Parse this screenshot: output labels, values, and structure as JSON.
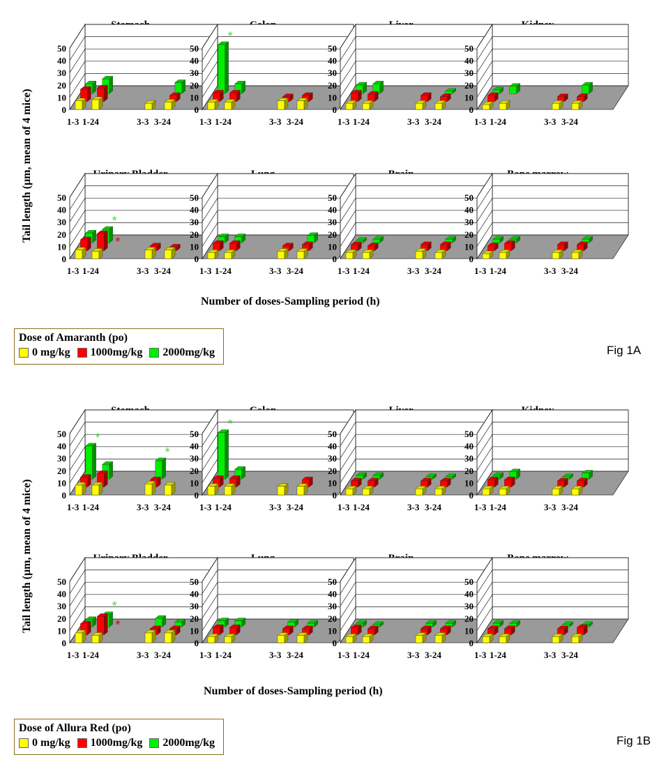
{
  "figures": [
    {
      "fig_label": "Fig 1A",
      "y_axis_label": "Tail length (µm, mean of 4 mice)",
      "x_axis_label": "Number of doses-Sampling period (h)",
      "legend": {
        "title": "Dose of Amaranth (po)",
        "items": [
          {
            "label": "0 mg/kg",
            "color": "#ffff00"
          },
          {
            "label": "1000mg/kg",
            "color": "#ff0000"
          },
          {
            "label": "2000mg/kg",
            "color": "#00ee00"
          }
        ]
      }
    },
    {
      "fig_label": "Fig 1B",
      "y_axis_label": "Tail length (µm, mean of 4 mice)",
      "x_axis_label": "Number of doses-Sampling period (h)",
      "legend": {
        "title": "Dose of Allura Red (po)",
        "items": [
          {
            "label": "0 mg/kg",
            "color": "#ffff00"
          },
          {
            "label": "1000mg/kg",
            "color": "#ff0000"
          },
          {
            "label": "2000mg/kg",
            "color": "#00ee00"
          }
        ]
      }
    }
  ],
  "chart_data": [
    {
      "figure": "Fig 1A",
      "type": "bar",
      "title": "Stomach",
      "categories": [
        "1-3",
        "1-24",
        "3-3",
        "3-24"
      ],
      "ylim": [
        0,
        50
      ],
      "yticks": [
        0,
        10,
        20,
        30,
        40,
        50
      ],
      "series": [
        {
          "name": "0 mg/kg",
          "values": [
            7,
            8,
            5,
            6
          ]
        },
        {
          "name": "1000mg/kg",
          "values": [
            10,
            11,
            0,
            5
          ]
        },
        {
          "name": "2000mg/kg",
          "values": [
            8,
            12,
            0,
            9
          ]
        }
      ],
      "annotations": []
    },
    {
      "figure": "Fig 1A",
      "type": "bar",
      "title": "Colon",
      "categories": [
        "1-3",
        "1-24",
        "3-3",
        "3-24"
      ],
      "ylim": [
        0,
        50
      ],
      "yticks": [
        0,
        10,
        20,
        30,
        40,
        50
      ],
      "series": [
        {
          "name": "0 mg/kg",
          "values": [
            6,
            6,
            7,
            7
          ]
        },
        {
          "name": "1000mg/kg",
          "values": [
            7,
            7,
            4,
            5
          ]
        },
        {
          "name": "2000mg/kg",
          "values": [
            40,
            8,
            0,
            0
          ]
        }
      ],
      "annotations": [
        {
          "text": "*",
          "series": 2,
          "category": 0,
          "color": "#44dd44"
        }
      ]
    },
    {
      "figure": "Fig 1A",
      "type": "bar",
      "title": "Liver",
      "categories": [
        "1-3",
        "1-24",
        "3-3",
        "3-24"
      ],
      "ylim": [
        0,
        50
      ],
      "yticks": [
        0,
        10,
        20,
        30,
        40,
        50
      ],
      "series": [
        {
          "name": "0 mg/kg",
          "values": [
            5,
            5,
            5,
            5
          ]
        },
        {
          "name": "1000mg/kg",
          "values": [
            7,
            6,
            5,
            4
          ]
        },
        {
          "name": "2000mg/kg",
          "values": [
            7,
            8,
            0,
            2
          ]
        }
      ],
      "annotations": []
    },
    {
      "figure": "Fig 1A",
      "type": "bar",
      "title": "Kidney",
      "categories": [
        "1-3",
        "1-24",
        "3-3",
        "3-24"
      ],
      "ylim": [
        0,
        50
      ],
      "yticks": [
        0,
        10,
        20,
        30,
        40,
        50
      ],
      "series": [
        {
          "name": "0 mg/kg",
          "values": [
            4,
            5,
            5,
            5
          ]
        },
        {
          "name": "1000mg/kg",
          "values": [
            5,
            0,
            4,
            4
          ]
        },
        {
          "name": "2000mg/kg",
          "values": [
            3,
            6,
            0,
            7
          ]
        }
      ],
      "annotations": []
    },
    {
      "figure": "Fig 1A",
      "type": "bar",
      "title": "Urinary Bladder",
      "categories": [
        "1-3",
        "1-24",
        "3-3",
        "3-24"
      ],
      "ylim": [
        0,
        50
      ],
      "yticks": [
        0,
        10,
        20,
        30,
        40,
        50
      ],
      "series": [
        {
          "name": "0 mg/kg",
          "values": [
            7,
            6,
            7,
            7
          ]
        },
        {
          "name": "1000mg/kg",
          "values": [
            9,
            14,
            4,
            3
          ]
        },
        {
          "name": "2000mg/kg",
          "values": [
            8,
            11,
            0,
            0
          ]
        }
      ],
      "annotations": [
        {
          "text": "*",
          "series": 2,
          "category": 1,
          "color": "#44dd44"
        },
        {
          "text": "*",
          "series": 1,
          "category": 1,
          "color": "#dd0000"
        }
      ]
    },
    {
      "figure": "Fig 1A",
      "type": "bar",
      "title": "Lung",
      "categories": [
        "1-3",
        "1-24",
        "3-3",
        "3-24"
      ],
      "ylim": [
        0,
        50
      ],
      "yticks": [
        0,
        10,
        20,
        30,
        40,
        50
      ],
      "series": [
        {
          "name": "0 mg/kg",
          "values": [
            5,
            5,
            6,
            6
          ]
        },
        {
          "name": "1000mg/kg",
          "values": [
            6,
            6,
            4,
            5
          ]
        },
        {
          "name": "2000mg/kg",
          "values": [
            5,
            5,
            0,
            6
          ]
        }
      ],
      "annotations": []
    },
    {
      "figure": "Fig 1A",
      "type": "bar",
      "title": "Brain",
      "categories": [
        "1-3",
        "1-24",
        "3-3",
        "3-24"
      ],
      "ylim": [
        0,
        50
      ],
      "yticks": [
        0,
        10,
        20,
        30,
        40,
        50
      ],
      "series": [
        {
          "name": "0 mg/kg",
          "values": [
            5,
            5,
            6,
            5
          ]
        },
        {
          "name": "1000mg/kg",
          "values": [
            5,
            4,
            5,
            5
          ]
        },
        {
          "name": "2000mg/kg",
          "values": [
            2,
            3,
            0,
            3
          ]
        }
      ],
      "annotations": []
    },
    {
      "figure": "Fig 1A",
      "type": "bar",
      "title": "Bone marrow",
      "categories": [
        "1-3",
        "1-24",
        "3-3",
        "3-24"
      ],
      "ylim": [
        0,
        50
      ],
      "yticks": [
        0,
        10,
        20,
        30,
        40,
        50
      ],
      "series": [
        {
          "name": "0 mg/kg",
          "values": [
            4,
            5,
            5,
            5
          ]
        },
        {
          "name": "1000mg/kg",
          "values": [
            4,
            6,
            5,
            5
          ]
        },
        {
          "name": "2000mg/kg",
          "values": [
            3,
            3,
            0,
            3
          ]
        }
      ],
      "annotations": []
    },
    {
      "figure": "Fig 1B",
      "type": "bar",
      "title": "Stomach",
      "categories": [
        "1-3",
        "1-24",
        "3-3",
        "3-24"
      ],
      "ylim": [
        0,
        50
      ],
      "yticks": [
        0,
        10,
        20,
        30,
        40,
        50
      ],
      "series": [
        {
          "name": "0 mg/kg",
          "values": [
            8,
            8,
            9,
            8
          ]
        },
        {
          "name": "1000mg/kg",
          "values": [
            8,
            11,
            6,
            0
          ]
        },
        {
          "name": "2000mg/kg",
          "values": [
            27,
            12,
            15,
            0
          ]
        }
      ],
      "annotations": [
        {
          "text": "*",
          "series": 2,
          "category": 0,
          "color": "#44dd44"
        },
        {
          "text": "*",
          "series": 2,
          "category": 2,
          "color": "#44dd44"
        }
      ]
    },
    {
      "figure": "Fig 1B",
      "type": "bar",
      "title": "Colon",
      "categories": [
        "1-3",
        "1-24",
        "3-3",
        "3-24"
      ],
      "ylim": [
        0,
        50
      ],
      "yticks": [
        0,
        10,
        20,
        30,
        40,
        50
      ],
      "series": [
        {
          "name": "0 mg/kg",
          "values": [
            7,
            7,
            7,
            7
          ]
        },
        {
          "name": "1000mg/kg",
          "values": [
            7,
            7,
            0,
            6
          ]
        },
        {
          "name": "2000mg/kg",
          "values": [
            38,
            8,
            0,
            0
          ]
        }
      ],
      "annotations": [
        {
          "text": "*",
          "series": 2,
          "category": 0,
          "color": "#44dd44"
        }
      ]
    },
    {
      "figure": "Fig 1B",
      "type": "bar",
      "title": "Liver",
      "categories": [
        "1-3",
        "1-24",
        "3-3",
        "3-24"
      ],
      "ylim": [
        0,
        50
      ],
      "yticks": [
        0,
        10,
        20,
        30,
        40,
        50
      ],
      "series": [
        {
          "name": "0 mg/kg",
          "values": [
            5,
            5,
            5,
            5
          ]
        },
        {
          "name": "1000mg/kg",
          "values": [
            5,
            5,
            5,
            5
          ]
        },
        {
          "name": "2000mg/kg",
          "values": [
            3,
            3,
            2,
            2
          ]
        }
      ],
      "annotations": []
    },
    {
      "figure": "Fig 1B",
      "type": "bar",
      "title": "Kidney",
      "categories": [
        "1-3",
        "1-24",
        "3-3",
        "3-24"
      ],
      "ylim": [
        0,
        50
      ],
      "yticks": [
        0,
        10,
        20,
        30,
        40,
        50
      ],
      "series": [
        {
          "name": "0 mg/kg",
          "values": [
            5,
            5,
            5,
            5
          ]
        },
        {
          "name": "1000mg/kg",
          "values": [
            6,
            6,
            5,
            5
          ]
        },
        {
          "name": "2000mg/kg",
          "values": [
            3,
            6,
            2,
            5
          ]
        }
      ],
      "annotations": []
    },
    {
      "figure": "Fig 1B",
      "type": "bar",
      "title": "Urinary Bladder",
      "categories": [
        "1-3",
        "1-24",
        "3-3",
        "3-24"
      ],
      "ylim": [
        0,
        50
      ],
      "yticks": [
        0,
        10,
        20,
        30,
        40,
        50
      ],
      "series": [
        {
          "name": "0 mg/kg",
          "values": [
            8,
            6,
            8,
            8
          ]
        },
        {
          "name": "1000mg/kg",
          "values": [
            9,
            15,
            5,
            5
          ]
        },
        {
          "name": "2000mg/kg",
          "values": [
            6,
            10,
            7,
            4
          ]
        }
      ],
      "annotations": [
        {
          "text": "*",
          "series": 2,
          "category": 1,
          "color": "#44dd44"
        },
        {
          "text": "*",
          "series": 1,
          "category": 1,
          "color": "#dd0000"
        }
      ]
    },
    {
      "figure": "Fig 1B",
      "type": "bar",
      "title": "Lung",
      "categories": [
        "1-3",
        "1-24",
        "3-3",
        "3-24"
      ],
      "ylim": [
        0,
        50
      ],
      "yticks": [
        0,
        10,
        20,
        30,
        40,
        50
      ],
      "series": [
        {
          "name": "0 mg/kg",
          "values": [
            5,
            5,
            6,
            6
          ]
        },
        {
          "name": "1000mg/kg",
          "values": [
            6,
            6,
            5,
            5
          ]
        },
        {
          "name": "2000mg/kg",
          "values": [
            5,
            5,
            4,
            3
          ]
        }
      ],
      "annotations": []
    },
    {
      "figure": "Fig 1B",
      "type": "bar",
      "title": "Brain",
      "categories": [
        "1-3",
        "1-24",
        "3-3",
        "3-24"
      ],
      "ylim": [
        0,
        50
      ],
      "yticks": [
        0,
        10,
        20,
        30,
        40,
        50
      ],
      "series": [
        {
          "name": "0 mg/kg",
          "values": [
            5,
            5,
            6,
            6
          ]
        },
        {
          "name": "1000mg/kg",
          "values": [
            6,
            5,
            5,
            5
          ]
        },
        {
          "name": "2000mg/kg",
          "values": [
            3,
            2,
            3,
            3
          ]
        }
      ],
      "annotations": []
    },
    {
      "figure": "Fig 1B",
      "type": "bar",
      "title": "Bone marrow",
      "categories": [
        "1-3",
        "1-24",
        "3-3",
        "3-24"
      ],
      "ylim": [
        0,
        50
      ],
      "yticks": [
        0,
        10,
        20,
        30,
        40,
        50
      ],
      "series": [
        {
          "name": "0 mg/kg",
          "values": [
            5,
            5,
            5,
            5
          ]
        },
        {
          "name": "1000mg/kg",
          "values": [
            5,
            5,
            5,
            6
          ]
        },
        {
          "name": "2000mg/kg",
          "values": [
            3,
            3,
            2,
            2
          ]
        }
      ],
      "annotations": []
    }
  ]
}
